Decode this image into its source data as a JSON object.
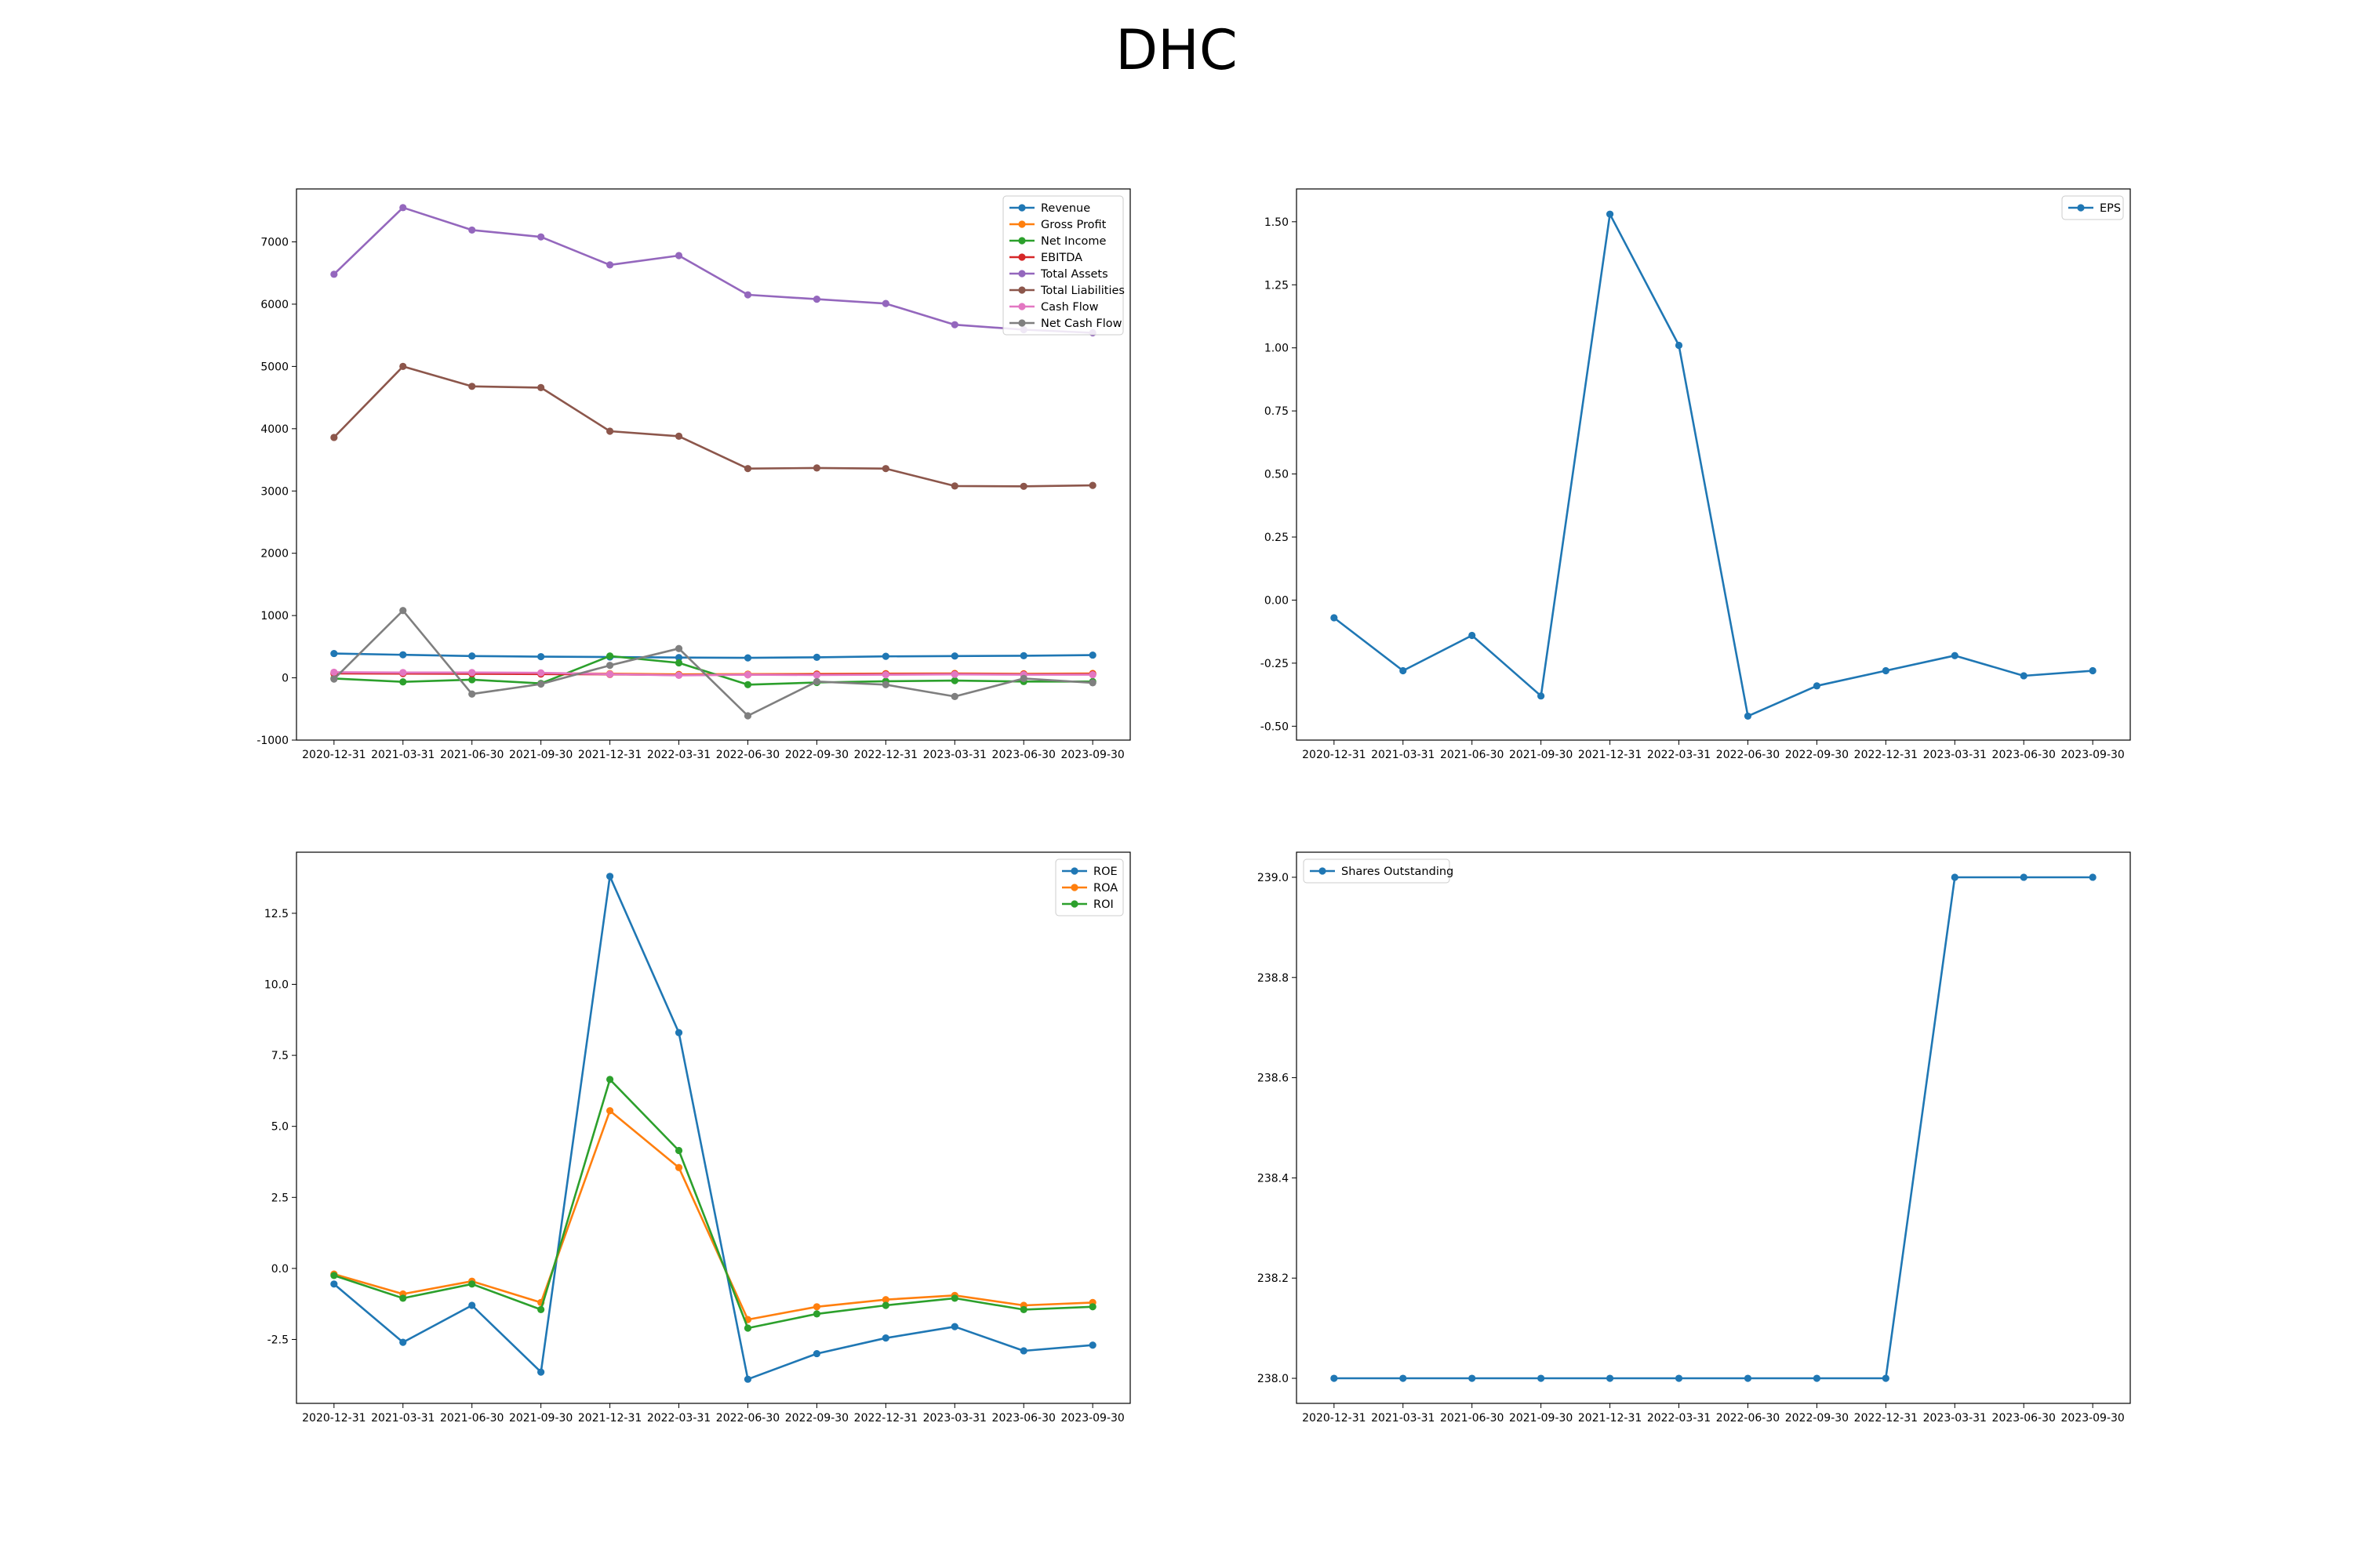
{
  "figure": {
    "title": "DHC"
  },
  "chart_data": [
    {
      "type": "line",
      "title": "",
      "xlabel": "",
      "ylabel": "",
      "categories": [
        "2020-12-31",
        "2021-03-31",
        "2021-06-30",
        "2021-09-30",
        "2021-12-31",
        "2022-03-31",
        "2022-06-30",
        "2022-09-30",
        "2022-12-31",
        "2023-03-31",
        "2023-06-30",
        "2023-09-30"
      ],
      "ylim": [
        -1000,
        7850
      ],
      "yticks": [
        -1000,
        0,
        1000,
        2000,
        3000,
        4000,
        5000,
        6000,
        7000
      ],
      "legend_position": "top-right",
      "grid": false,
      "series": [
        {
          "name": "Revenue",
          "color": "#1f77b4",
          "values": [
            390,
            370,
            350,
            340,
            335,
            325,
            320,
            330,
            345,
            350,
            355,
            365
          ]
        },
        {
          "name": "Gross Profit",
          "color": "#ff7f0e",
          "values": [
            80,
            78,
            75,
            72,
            68,
            55,
            60,
            62,
            68,
            70,
            65,
            70
          ]
        },
        {
          "name": "Net Income",
          "color": "#2ca02c",
          "values": [
            -10,
            -65,
            -30,
            -90,
            350,
            240,
            -110,
            -75,
            -55,
            -45,
            -60,
            -60
          ]
        },
        {
          "name": "EBITDA",
          "color": "#d62728",
          "values": [
            70,
            68,
            65,
            60,
            55,
            45,
            50,
            55,
            60,
            62,
            58,
            60
          ]
        },
        {
          "name": "Total Assets",
          "color": "#9467bd",
          "values": [
            6480,
            7550,
            7190,
            7080,
            6630,
            6780,
            6150,
            6080,
            6010,
            5670,
            5590,
            5540
          ]
        },
        {
          "name": "Total Liabilities",
          "color": "#8c564b",
          "values": [
            3860,
            5000,
            4680,
            4660,
            3960,
            3880,
            3360,
            3370,
            3360,
            3080,
            3075,
            3090
          ]
        },
        {
          "name": "Cash Flow",
          "color": "#e377c2",
          "values": [
            90,
            85,
            85,
            80,
            60,
            40,
            50,
            45,
            50,
            55,
            50,
            50
          ]
        },
        {
          "name": "Net Cash Flow",
          "color": "#7f7f7f",
          "values": [
            -20,
            1080,
            -260,
            -100,
            200,
            470,
            -610,
            -60,
            -110,
            -300,
            -10,
            -80
          ]
        }
      ]
    },
    {
      "type": "line",
      "title": "",
      "xlabel": "",
      "ylabel": "",
      "categories": [
        "2020-12-31",
        "2021-03-31",
        "2021-06-30",
        "2021-09-30",
        "2021-12-31",
        "2022-03-31",
        "2022-06-30",
        "2022-09-30",
        "2022-12-31",
        "2023-03-31",
        "2023-06-30",
        "2023-09-30"
      ],
      "ylim": [
        -0.555,
        1.63
      ],
      "yticks": [
        -0.5,
        -0.25,
        0.0,
        0.25,
        0.5,
        0.75,
        1.0,
        1.25,
        1.5
      ],
      "tick_format": "0.00",
      "legend_position": "top-right",
      "grid": false,
      "series": [
        {
          "name": "EPS",
          "color": "#1f77b4",
          "values": [
            -0.07,
            -0.28,
            -0.14,
            -0.38,
            1.53,
            1.01,
            -0.46,
            -0.34,
            -0.28,
            -0.22,
            -0.3,
            -0.28
          ]
        }
      ]
    },
    {
      "type": "line",
      "title": "",
      "xlabel": "",
      "ylabel": "",
      "categories": [
        "2020-12-31",
        "2021-03-31",
        "2021-06-30",
        "2021-09-30",
        "2021-12-31",
        "2022-03-31",
        "2022-06-30",
        "2022-09-30",
        "2022-12-31",
        "2023-03-31",
        "2023-06-30",
        "2023-09-30"
      ],
      "ylim": [
        -4.75,
        14.65
      ],
      "yticks": [
        -2.5,
        0.0,
        2.5,
        5.0,
        7.5,
        10.0,
        12.5
      ],
      "tick_format": "0.0",
      "legend_position": "top-right",
      "grid": false,
      "series": [
        {
          "name": "ROE",
          "color": "#1f77b4",
          "values": [
            -0.55,
            -2.6,
            -1.3,
            -3.65,
            13.8,
            8.3,
            -3.9,
            -3.0,
            -2.45,
            -2.05,
            -2.9,
            -2.7
          ]
        },
        {
          "name": "ROA",
          "color": "#ff7f0e",
          "values": [
            -0.2,
            -0.9,
            -0.45,
            -1.2,
            5.55,
            3.55,
            -1.8,
            -1.35,
            -1.1,
            -0.95,
            -1.3,
            -1.2
          ]
        },
        {
          "name": "ROI",
          "color": "#2ca02c",
          "values": [
            -0.25,
            -1.05,
            -0.55,
            -1.45,
            6.65,
            4.15,
            -2.1,
            -1.6,
            -1.3,
            -1.05,
            -1.45,
            -1.35
          ]
        }
      ]
    },
    {
      "type": "line",
      "title": "",
      "xlabel": "",
      "ylabel": "",
      "categories": [
        "2020-12-31",
        "2021-03-31",
        "2021-06-30",
        "2021-09-30",
        "2021-12-31",
        "2022-03-31",
        "2022-06-30",
        "2022-09-30",
        "2022-12-31",
        "2023-03-31",
        "2023-06-30",
        "2023-09-30"
      ],
      "ylim": [
        237.95,
        239.05
      ],
      "yticks": [
        238.0,
        238.2,
        238.4,
        238.6,
        238.8,
        239.0
      ],
      "tick_format": "0.0",
      "legend_position": "top-left",
      "grid": false,
      "series": [
        {
          "name": "Shares Outstanding",
          "color": "#1f77b4",
          "values": [
            238,
            238,
            238,
            238,
            238,
            238,
            238,
            238,
            238,
            239,
            239,
            239
          ]
        }
      ]
    }
  ]
}
